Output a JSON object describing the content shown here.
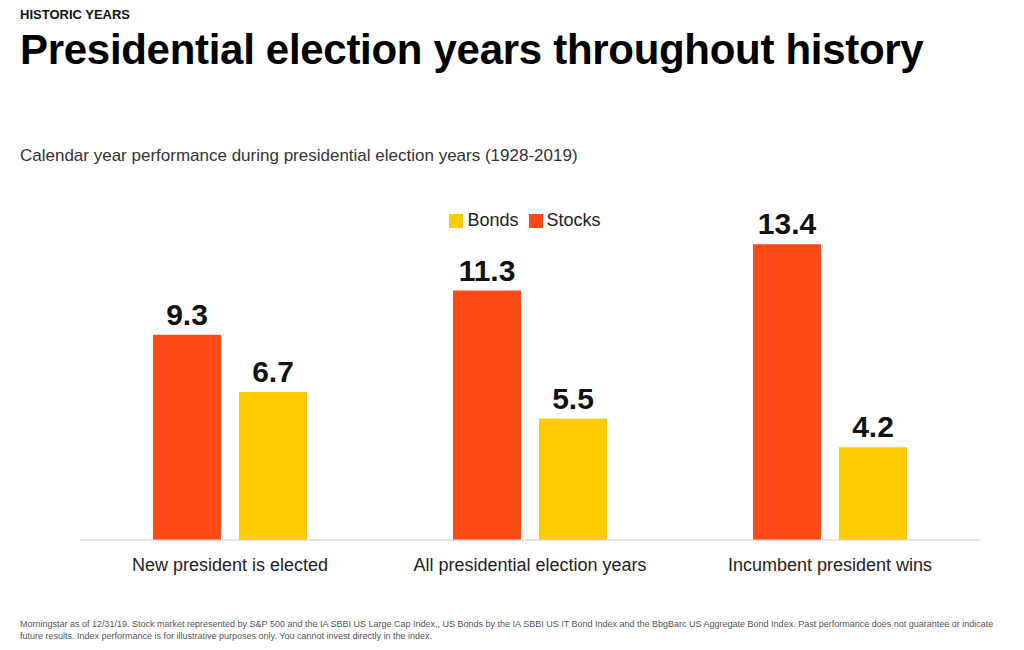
{
  "chart_data": {
    "type": "bar",
    "header": "HISTORIC YEARS",
    "title": "Presidential election years throughout history",
    "subtitle": "Calendar year performance during presidential election years (1928-2019)",
    "footnote": "Morningstar as of 12/31/19. Stock market represented by S&P 500 and the IA SBBI US Large Cap Index,, US Bonds by the IA SBBI US IT Bond Index and the BbgBarc US Aggregate Bond Index. Past performance does not guarantee or indicate future results. Index performance is for illustrative purposes only. You cannot invest directly in the index.",
    "categories": [
      "New president is elected",
      "All presidential election years",
      "Incumbent president wins"
    ],
    "series": [
      {
        "name": "Stocks",
        "color": "#ff4a17",
        "values": [
          9.3,
          11.3,
          13.4
        ]
      },
      {
        "name": "Bonds",
        "color": "#ffcc00",
        "values": [
          6.7,
          5.5,
          4.2
        ]
      }
    ],
    "ylim": [
      0,
      14
    ],
    "grid": false,
    "legend": "top",
    "data_labels": true,
    "tick_labels": "x"
  }
}
